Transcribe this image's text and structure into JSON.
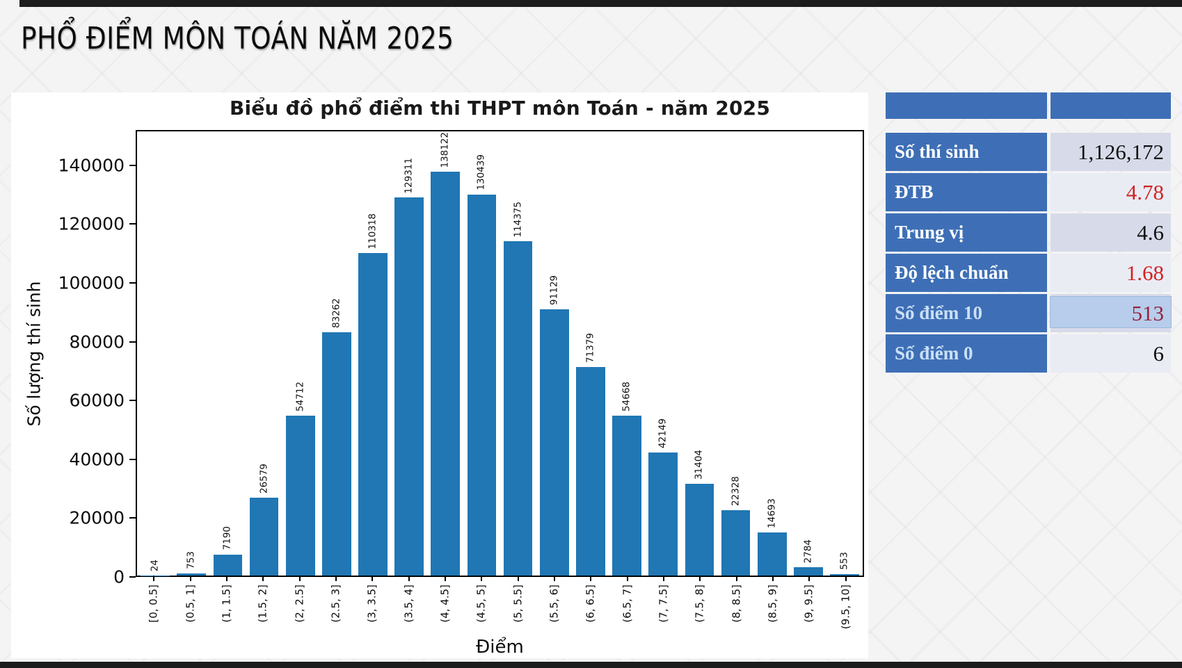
{
  "page": {
    "title": "PHỔ ĐIỂM MÔN TOÁN NĂM 2025"
  },
  "colors": {
    "bar_blue": "#2077b4",
    "table_blue": "#3e6fb6",
    "highlight_cell_blue": "#b7cdeb",
    "value_red": "#d02424",
    "value_dark_red": "#97223c",
    "value_black": "#111111",
    "label_white": "#ffffff",
    "label_pale_blue": "#cbe0f6"
  },
  "chart_data": {
    "type": "bar",
    "title": "Biểu đồ phổ điểm thi THPT môn Toán - năm 2025",
    "xlabel": "Điểm",
    "ylabel": "Số lượng thí sinh",
    "categories": [
      "[0, 0.5]",
      "(0.5, 1]",
      "(1, 1.5]",
      "(1.5, 2]",
      "(2, 2.5]",
      "(2.5, 3]",
      "(3, 3.5]",
      "(3.5, 4]",
      "(4, 4.5]",
      "(4.5, 5]",
      "(5, 5.5]",
      "(5.5, 6]",
      "(6, 6.5]",
      "(6.5, 7]",
      "(7, 7.5]",
      "(7.5, 8]",
      "(8, 8.5]",
      "(8.5, 9]",
      "(9, 9.5]",
      "(9.5, 10]"
    ],
    "values": [
      24,
      753,
      7190,
      26579,
      54712,
      83262,
      110318,
      129311,
      138122,
      130439,
      114375,
      91129,
      71379,
      54668,
      42149,
      31404,
      22328,
      14693,
      2784,
      553
    ],
    "yticks": [
      0,
      20000,
      40000,
      60000,
      80000,
      100000,
      120000,
      140000
    ],
    "ylim": [
      0,
      152000
    ],
    "grid": false,
    "legend": null,
    "bar_color": "#2077b4"
  },
  "stats_table": {
    "rows": [
      {
        "label": "Số thí sinh",
        "value": "1,126,172",
        "label_color": "#ffffff",
        "value_color": "#111111",
        "highlight": false
      },
      {
        "label": "ĐTB",
        "value": "4.78",
        "label_color": "#ffffff",
        "value_color": "#d02424",
        "highlight": false
      },
      {
        "label": "Trung vị",
        "value": "4.6",
        "label_color": "#ffffff",
        "value_color": "#111111",
        "highlight": false
      },
      {
        "label": "Độ lệch chuẩn",
        "value": "1.68",
        "label_color": "#ffffff",
        "value_color": "#d02424",
        "highlight": false
      },
      {
        "label": "Số điểm 10",
        "value": "513",
        "label_color": "#cbe0f6",
        "value_color": "#97223c",
        "highlight": true
      },
      {
        "label": "Số điểm 0",
        "value": "6",
        "label_color": "#cbe0f6",
        "value_color": "#111111",
        "highlight": false
      }
    ]
  }
}
